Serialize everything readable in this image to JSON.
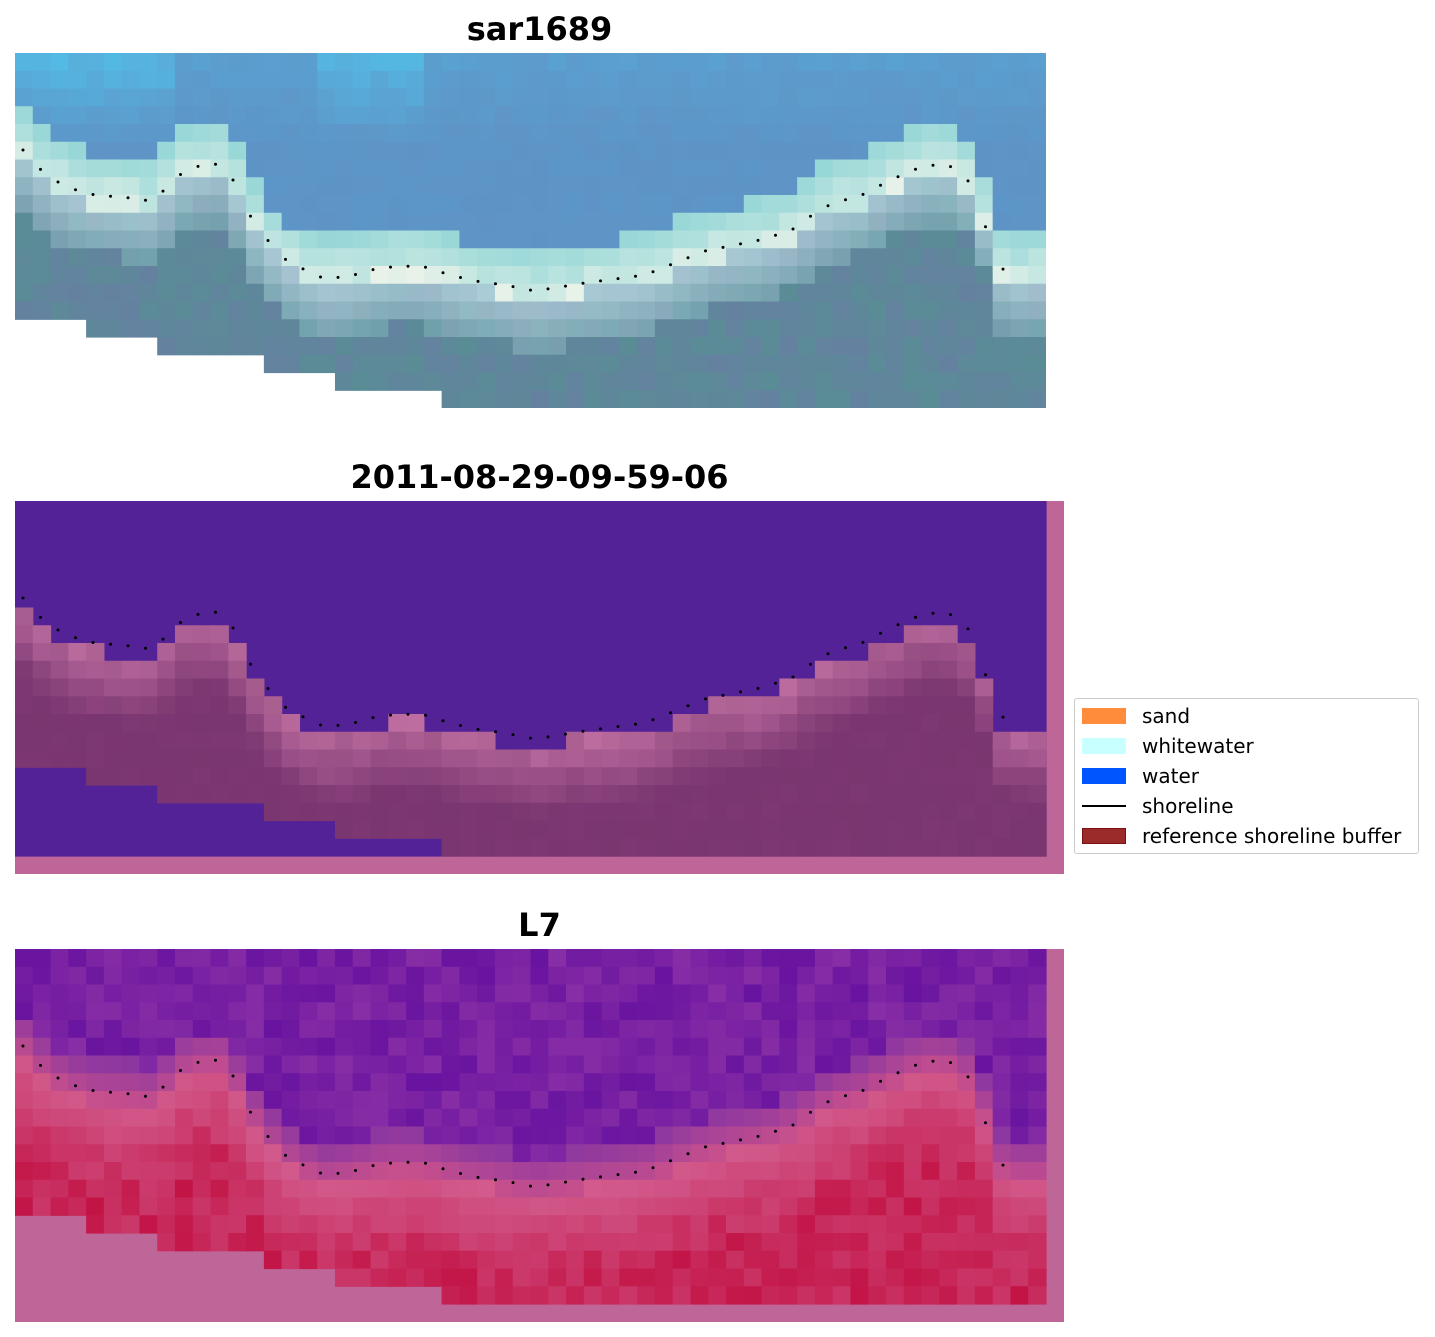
{
  "panels": [
    {
      "title": "sar1689",
      "kind": "rgb"
    },
    {
      "title": "2011-08-29-09-59-06",
      "kind": "classified"
    },
    {
      "title": "L7",
      "kind": "index"
    }
  ],
  "legend": {
    "items": [
      {
        "label": "sand",
        "type": "patch",
        "color": "#ff8c3a"
      },
      {
        "label": "whitewater",
        "type": "patch",
        "color": "#c8ffff"
      },
      {
        "label": "water",
        "type": "patch",
        "color": "#0055ff"
      },
      {
        "label": "shoreline",
        "type": "line",
        "color": "#000000"
      },
      {
        "label": "reference shoreline buffer",
        "type": "patch",
        "color": "#9b2a2a",
        "edge": "#7a1010"
      }
    ]
  },
  "colors": {
    "classified_water": "#532296",
    "buffer_overlay": "#be6697",
    "shoreline_dots": "#000000"
  }
}
